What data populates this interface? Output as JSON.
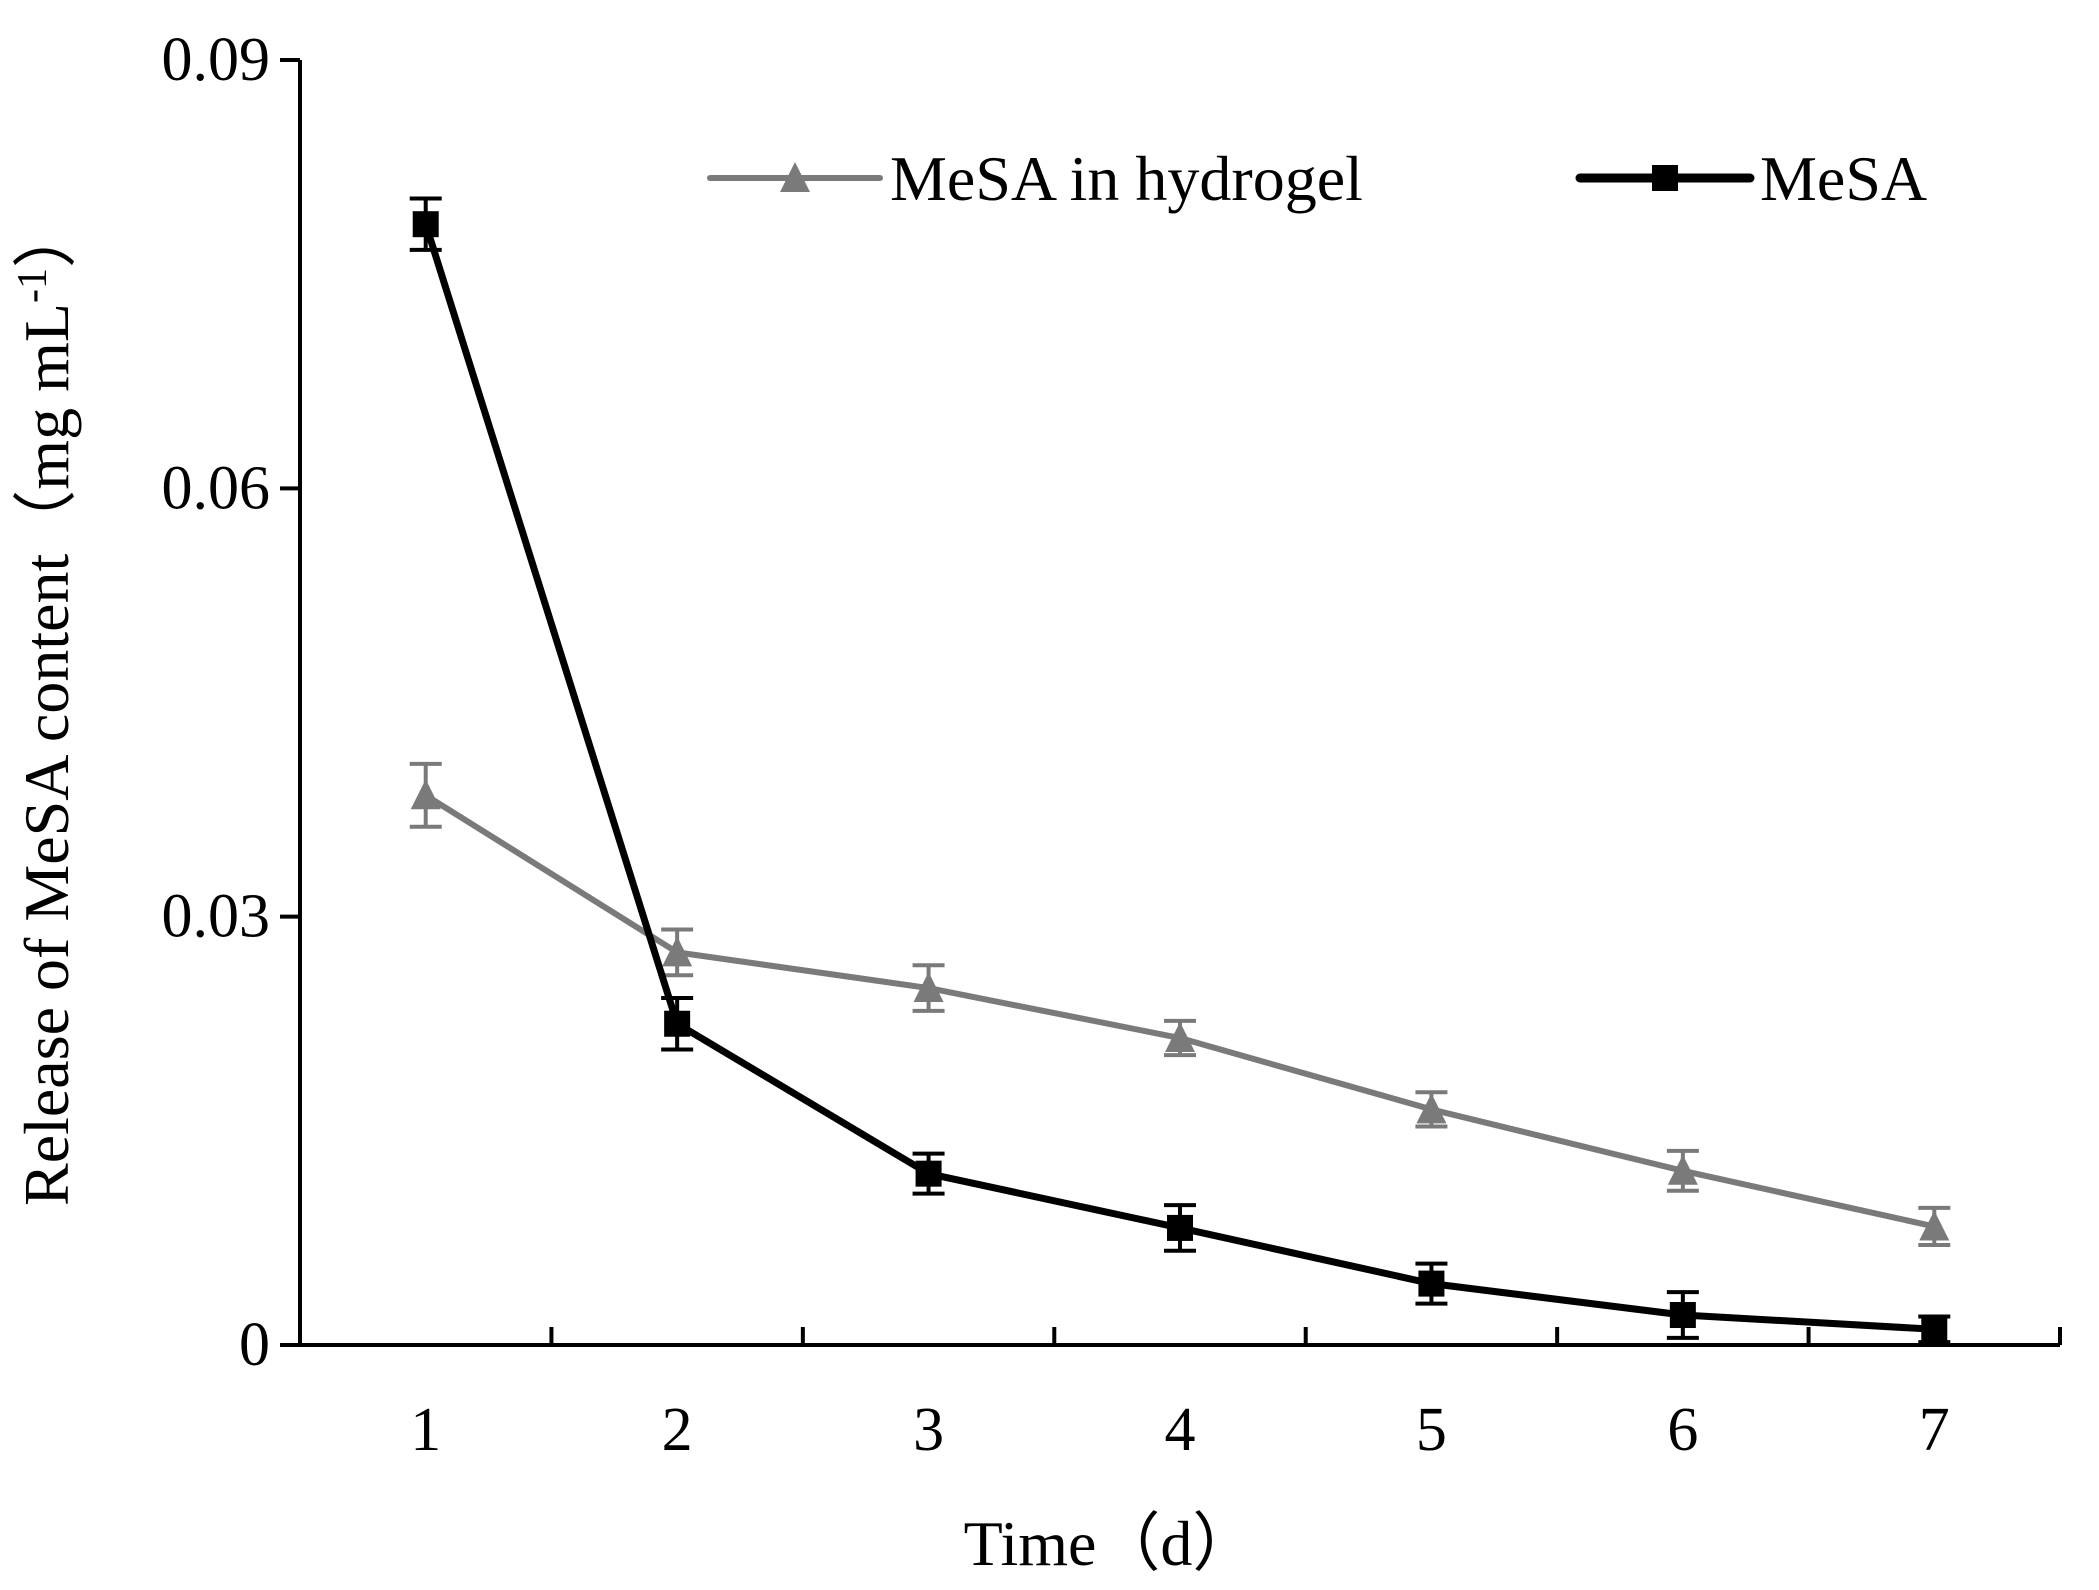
{
  "chart_data": {
    "type": "line",
    "title": "",
    "xlabel": "Time（d）",
    "ylabel_main": "Release of  MeSA content（mg mL",
    "ylabel_sup": "-1",
    "ylabel_close": "）",
    "categories": [
      "1",
      "2",
      "3",
      "4",
      "5",
      "6",
      "7"
    ],
    "x": [
      1,
      2,
      3,
      4,
      5,
      6,
      7
    ],
    "xlim": [
      0.5,
      7.5
    ],
    "ylim": [
      0,
      0.09
    ],
    "yticks": [
      0,
      0.03,
      0.06,
      0.09
    ],
    "ytick_labels": [
      "0",
      "0.03",
      "0.06",
      "0.09"
    ],
    "grid": false,
    "legend_position": "top",
    "series": [
      {
        "name": "MeSA in hydrogel",
        "color": "#7a7a7a",
        "marker": "triangle",
        "values": [
          0.0385,
          0.0275,
          0.025,
          0.0215,
          0.0165,
          0.0122,
          0.0083
        ],
        "errors": [
          0.0022,
          0.0016,
          0.0016,
          0.0012,
          0.0012,
          0.0014,
          0.0013
        ]
      },
      {
        "name": "MeSA",
        "color": "#000000",
        "marker": "square",
        "values": [
          0.0785,
          0.0225,
          0.012,
          0.0082,
          0.0043,
          0.0021,
          0.0011
        ],
        "errors": [
          0.0018,
          0.0018,
          0.0014,
          0.0016,
          0.0014,
          0.0016,
          0.0009
        ]
      }
    ]
  }
}
